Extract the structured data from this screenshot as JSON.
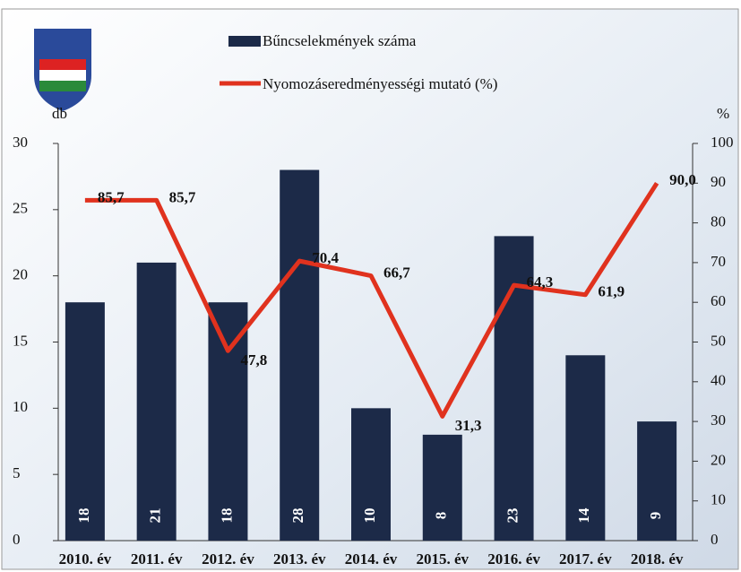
{
  "chart_data": {
    "type": "bar-line",
    "categories": [
      "2010. év",
      "2011. év",
      "2012. év",
      "2013. év",
      "2014. év",
      "2015. év",
      "2016. év",
      "2017. év",
      "2018. év"
    ],
    "series": [
      {
        "name": "Bűncselekmények száma",
        "color": "#1c2a48",
        "type": "bar",
        "values": [
          18,
          21,
          18,
          28,
          10,
          8,
          23,
          14,
          9
        ]
      },
      {
        "name": "Nyomozáseredményességi mutató (%)",
        "color": "#e0321e",
        "type": "line",
        "axis": "y2",
        "values": [
          85.7,
          85.7,
          47.8,
          70.4,
          66.7,
          31.3,
          64.3,
          61.9,
          90.0
        ],
        "value_labels": [
          "85,7",
          "85,7",
          "47,8",
          "70,4",
          "66,7",
          "31,3",
          "64,3",
          "61,9",
          "90,0"
        ]
      }
    ],
    "ylabel": "db",
    "y2label": "%",
    "ylim": [
      0,
      30
    ],
    "yticks": [
      0,
      5,
      10,
      15,
      20,
      25,
      30
    ],
    "y2lim": [
      0,
      100
    ],
    "y2ticks": [
      0,
      10,
      20,
      30,
      40,
      50,
      60,
      70,
      80,
      90,
      100
    ]
  }
}
